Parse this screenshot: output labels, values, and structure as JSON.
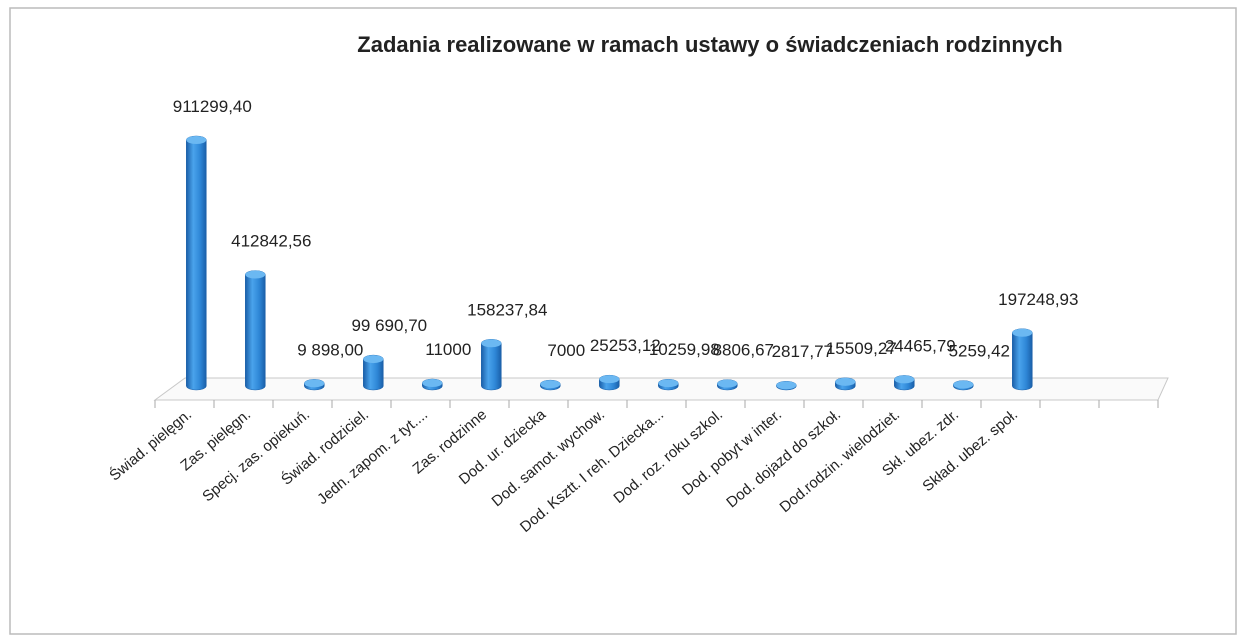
{
  "chart_data": {
    "type": "bar",
    "title": "Zadania realizowane w ramach ustawy o świadczeniach rodzinnych",
    "color": "#2e86d6",
    "categories": [
      "Świad. pielęgn.",
      "Zas. pielęgn.",
      "Specj. zas. opiekuń.",
      "Świad. rodziciel.",
      "Jedn. zapom. z tyt....",
      "Zas. rodzinne",
      "Dod. ur. dziecka",
      "Dod. samot. wychow.",
      "Dod. Ksztt. I reh. Dziecka...",
      "Dod. roz. roku szkol.",
      "Dod.  pobyt w inter.",
      "Dod. dojazd do szkoł.",
      "Dod.rodzin. wielodziet.",
      "Skł. ubez. zdr.",
      "Skład. ubez. społ.",
      null,
      null
    ],
    "values": [
      911299.4,
      412842.56,
      9898,
      99690.7,
      11000,
      158237.84,
      7000,
      25253.12,
      10259.98,
      8806.67,
      2817.77,
      15509.27,
      24465.79,
      5259.42,
      197248.93,
      null,
      null
    ],
    "value_labels": [
      "911299,40",
      "412842,56",
      "9 898,00",
      "99 690,70",
      "11000",
      "158237,84",
      "7000",
      "25253,12",
      "10259,98",
      "8806,67",
      "2817,77",
      "15509,27",
      "24465,79",
      "5259,42",
      "197248,93",
      null,
      null
    ]
  }
}
